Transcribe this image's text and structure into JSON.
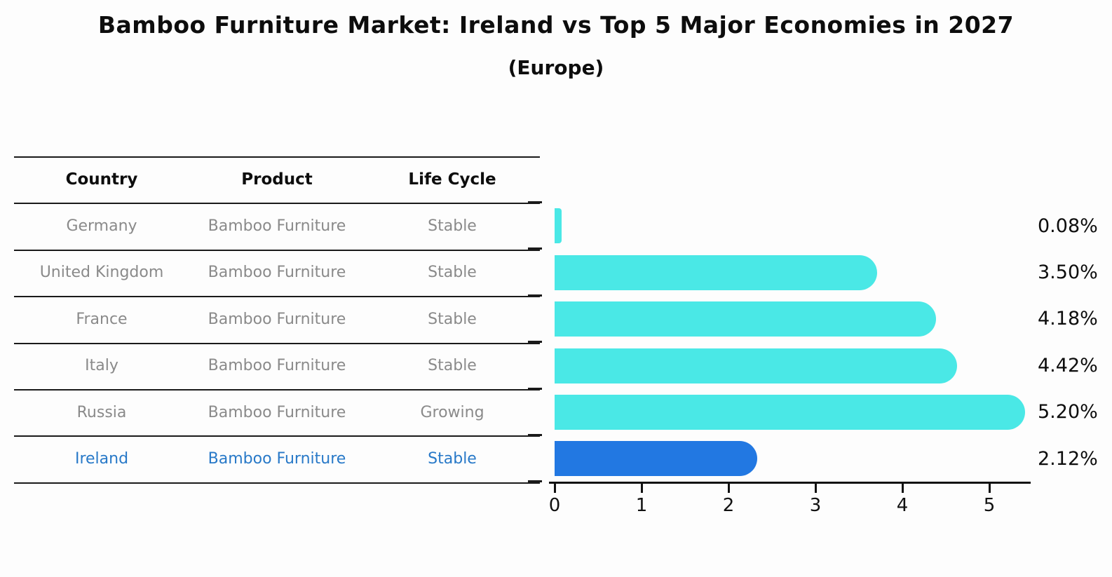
{
  "header": {
    "title": "Bamboo Furniture Market: Ireland vs Top 5 Major Economies in 2027",
    "subtitle": "(Europe)"
  },
  "table": {
    "headers": [
      "Country",
      "Product",
      "Life Cycle"
    ],
    "rows": [
      {
        "country": "Germany",
        "product": "Bamboo Furniture",
        "life_cycle": "Stable",
        "highlight": false
      },
      {
        "country": "United Kingdom",
        "product": "Bamboo Furniture",
        "life_cycle": "Stable",
        "highlight": false
      },
      {
        "country": "France",
        "product": "Bamboo Furniture",
        "life_cycle": "Stable",
        "highlight": false
      },
      {
        "country": "Italy",
        "product": "Bamboo Furniture",
        "life_cycle": "Stable",
        "highlight": false
      },
      {
        "country": "Russia",
        "product": "Bamboo Furniture",
        "life_cycle": "Growing",
        "highlight": false
      },
      {
        "country": "Ireland",
        "product": "Bamboo Furniture",
        "life_cycle": "Stable",
        "highlight": true
      }
    ]
  },
  "chart_data": {
    "type": "bar",
    "orientation": "horizontal",
    "title": "Bamboo Furniture Market: Ireland vs Top 5 Major Economies in 2027 (Europe)",
    "categories": [
      "Germany",
      "United Kingdom",
      "France",
      "Italy",
      "Russia",
      "Ireland"
    ],
    "values": [
      0.08,
      3.5,
      4.18,
      4.42,
      5.2,
      2.12
    ],
    "value_labels": [
      "0.08%",
      "3.50%",
      "4.18%",
      "4.42%",
      "5.20%",
      "2.12%"
    ],
    "highlight_index": 5,
    "xlabel": "",
    "ylabel": "",
    "xticks": [
      "0",
      "1",
      "2",
      "3",
      "4",
      "5"
    ],
    "xlim": [
      0,
      5.5
    ],
    "grid": false,
    "legend": false,
    "rounded_bar_ends": true
  },
  "colors": {
    "bar": "#4ae8e6",
    "highlight_bar": "#2278e2",
    "highlight_text": "#2879c8",
    "row_text": "#8a8a8a",
    "axis": "#111111"
  }
}
